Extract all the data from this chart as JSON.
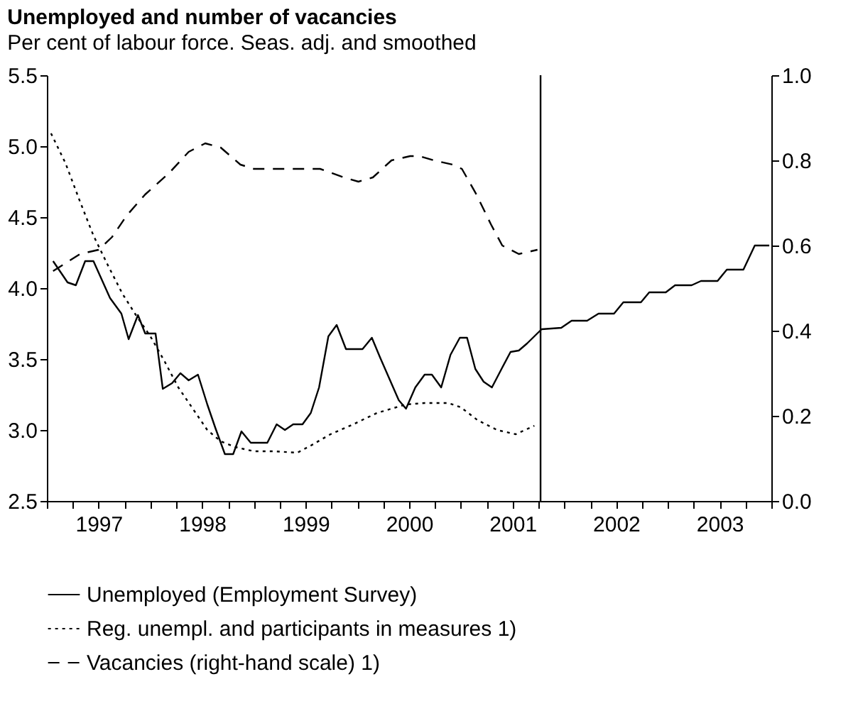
{
  "chart_data": {
    "type": "line",
    "title": "Unemployed and number of vacancies",
    "subtitle": "Per cent of labour force. Seas. adj. and smoothed",
    "xlim": [
      1997,
      2004
    ],
    "xticks": [
      {
        "value": 1997,
        "label": null
      },
      {
        "value": 1997.25,
        "label": null
      },
      {
        "value": 1997.5,
        "label": "1997"
      },
      {
        "value": 1997.75,
        "label": null
      },
      {
        "value": 1998,
        "label": null
      },
      {
        "value": 1998.25,
        "label": null
      },
      {
        "value": 1998.5,
        "label": "1998"
      },
      {
        "value": 1998.75,
        "label": null
      },
      {
        "value": 1999,
        "label": null
      },
      {
        "value": 1999.25,
        "label": null
      },
      {
        "value": 1999.5,
        "label": "1999"
      },
      {
        "value": 1999.75,
        "label": null
      },
      {
        "value": 2000,
        "label": null
      },
      {
        "value": 2000.25,
        "label": null
      },
      {
        "value": 2000.5,
        "label": "2000"
      },
      {
        "value": 2000.75,
        "label": null
      },
      {
        "value": 2001,
        "label": null
      },
      {
        "value": 2001.25,
        "label": null
      },
      {
        "value": 2001.5,
        "label": "2001"
      },
      {
        "value": 2001.75,
        "label": null
      },
      {
        "value": 2002,
        "label": null
      },
      {
        "value": 2002.25,
        "label": null
      },
      {
        "value": 2002.5,
        "label": "2002"
      },
      {
        "value": 2002.75,
        "label": null
      },
      {
        "value": 2003,
        "label": null
      },
      {
        "value": 2003.25,
        "label": null
      },
      {
        "value": 2003.5,
        "label": "2003"
      },
      {
        "value": 2003.75,
        "label": null
      },
      {
        "value": 2004,
        "label": null
      }
    ],
    "ylim": [
      2.5,
      5.5
    ],
    "yticks": [
      {
        "value": 2.5,
        "label": "2.5"
      },
      {
        "value": 3,
        "label": "3.0"
      },
      {
        "value": 3.5,
        "label": "3.5"
      },
      {
        "value": 4,
        "label": "4.0"
      },
      {
        "value": 4.5,
        "label": "4.5"
      },
      {
        "value": 5,
        "label": "5.0"
      },
      {
        "value": 5.5,
        "label": "5.5"
      }
    ],
    "y2lim": [
      0,
      1
    ],
    "y2ticks": [
      {
        "value": 0,
        "label": "0.0"
      },
      {
        "value": 0.2,
        "label": "0.2"
      },
      {
        "value": 0.4,
        "label": "0.4"
      },
      {
        "value": 0.6,
        "label": "0.6"
      },
      {
        "value": 0.8,
        "label": "0.8"
      },
      {
        "value": 1,
        "label": "1.0"
      }
    ],
    "grid": false,
    "legend": "bottom",
    "marker": "none",
    "ref_lines": [
      {
        "axis": "x",
        "value": 2001.77,
        "color": "#000000",
        "line_style": "solid"
      }
    ],
    "series": [
      {
        "name": "Unemployed (Employment Survey)",
        "color": "#000000",
        "line_style": "solid",
        "x": [
          1997.06,
          1997.2,
          1997.28,
          1997.37,
          1997.45,
          1997.61,
          1997.72,
          1997.79,
          1997.88,
          1997.95,
          1998.05,
          1998.12,
          1998.21,
          1998.29,
          1998.37,
          1998.46,
          1998.55,
          1998.63,
          1998.72,
          1998.8,
          1998.88,
          1998.97,
          1999.13,
          1999.22,
          1999.3,
          1999.38,
          1999.47,
          1999.55,
          1999.63,
          1999.72,
          1999.8,
          1999.89,
          1999.97,
          2000.05,
          2000.14,
          2000.22,
          2000.4,
          2000.47,
          2000.56,
          2000.65,
          2000.72,
          2000.81,
          2000.9,
          2000.99,
          2001.06,
          2001.14,
          2001.22,
          2001.3,
          2001.4,
          2001.48,
          2001.56,
          2001.64,
          2001.78,
          2001.97,
          2002.07,
          2002.22,
          2002.33,
          2002.48,
          2002.57,
          2002.74,
          2002.82,
          2002.98,
          2003.07,
          2003.23,
          2003.32,
          2003.48,
          2003.57,
          2003.73,
          2003.84,
          2003.98
        ],
        "values": [
          4.19,
          4.04,
          4.02,
          4.19,
          4.19,
          3.93,
          3.82,
          3.64,
          3.81,
          3.68,
          3.68,
          3.29,
          3.33,
          3.4,
          3.35,
          3.39,
          3.18,
          3.01,
          2.83,
          2.83,
          2.99,
          2.91,
          2.91,
          3.04,
          3.0,
          3.04,
          3.04,
          3.12,
          3.3,
          3.66,
          3.74,
          3.57,
          3.57,
          3.57,
          3.65,
          3.51,
          3.21,
          3.15,
          3.3,
          3.39,
          3.39,
          3.3,
          3.53,
          3.65,
          3.65,
          3.43,
          3.34,
          3.3,
          3.44,
          3.55,
          3.56,
          3.61,
          3.71,
          3.72,
          3.77,
          3.77,
          3.82,
          3.82,
          3.9,
          3.9,
          3.97,
          3.97,
          4.02,
          4.02,
          4.05,
          4.05,
          4.13,
          4.13,
          4.3,
          4.3
        ]
      },
      {
        "name": "Reg. unempl. and participants in measures 1)",
        "color": "#000000",
        "line_style": "dotted",
        "x": [
          1997.04,
          1997.18,
          1997.32,
          1997.45,
          1997.59,
          1997.73,
          1997.86,
          1998.0,
          1998.14,
          1998.27,
          1998.41,
          1998.55,
          1998.68,
          1998.82,
          1999.0,
          1999.19,
          1999.42,
          1999.55,
          1999.74,
          1999.96,
          2000.19,
          2000.47,
          2000.65,
          2000.88,
          2001.0,
          2001.16,
          2001.35,
          2001.53,
          2001.71
        ],
        "values": [
          5.09,
          4.88,
          4.61,
          4.37,
          4.16,
          3.96,
          3.81,
          3.66,
          3.48,
          3.3,
          3.15,
          3.0,
          2.92,
          2.88,
          2.85,
          2.85,
          2.84,
          2.89,
          2.97,
          3.04,
          3.12,
          3.18,
          3.19,
          3.19,
          3.16,
          3.07,
          3.0,
          2.97,
          3.03
        ]
      },
      {
        "name": "Vacancies (right-hand scale) 1)",
        "color": "#000000",
        "line_style": "dashed",
        "axis": "y2",
        "x": [
          1997.06,
          1997.32,
          1997.5,
          1997.63,
          1997.77,
          1997.95,
          1998.18,
          1998.37,
          1998.53,
          1998.68,
          1998.87,
          1999.0,
          1999.28,
          1999.64,
          1999.87,
          2000.01,
          2000.15,
          2000.33,
          2000.51,
          2000.6,
          2000.74,
          2000.92,
          2001.01,
          2001.15,
          2001.29,
          2001.4,
          2001.56,
          2001.74
        ],
        "values": [
          0.54,
          0.58,
          0.59,
          0.62,
          0.67,
          0.72,
          0.77,
          0.82,
          0.84,
          0.83,
          0.79,
          0.78,
          0.78,
          0.78,
          0.76,
          0.75,
          0.76,
          0.8,
          0.81,
          0.81,
          0.8,
          0.79,
          0.78,
          0.72,
          0.65,
          0.6,
          0.58,
          0.59
        ]
      }
    ]
  }
}
